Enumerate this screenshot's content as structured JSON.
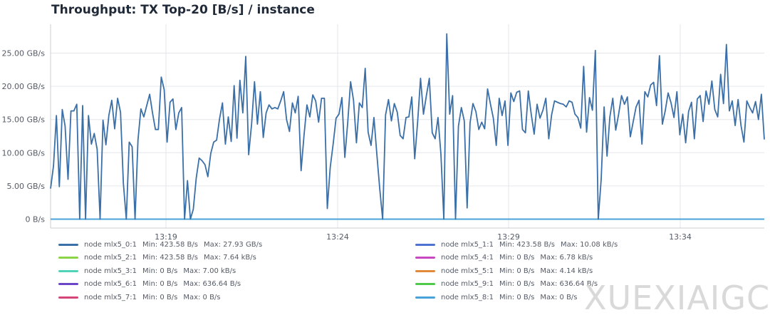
{
  "title": "Throughput: TX Top-20 [B/s] / instance",
  "watermark": "XUEXIAIGC",
  "colors": {
    "line": "#3a6fa8",
    "grid": "#e4e6ea",
    "axis": "#c9ccd2",
    "tick_text": "#555b66"
  },
  "chart_data": {
    "type": "line",
    "title": "Throughput: TX Top-20 [B/s] / instance",
    "xlabel": "",
    "ylabel": "",
    "ylim": [
      0,
      29.5
    ],
    "y_unit": "GB/s",
    "y_ticks": [
      {
        "value": 0,
        "label": "0 B/s"
      },
      {
        "value": 5,
        "label": "5.00 GB/s"
      },
      {
        "value": 10,
        "label": "10.00 GB/s"
      },
      {
        "value": 15,
        "label": "15.00 GB/s"
      },
      {
        "value": 20,
        "label": "20.00 GB/s"
      },
      {
        "value": 25,
        "label": "25.00 GB/s"
      }
    ],
    "x_ticks": [
      "13:19",
      "13:24",
      "13:29",
      "13:34"
    ],
    "grid": true,
    "legend_position": "bottom",
    "series_values": [
      [
        4.6,
        8.0,
        15.6,
        4.9,
        16.5,
        14.0,
        6.0,
        16.3,
        16.3,
        17.3,
        0.0,
        17.1,
        0.0,
        15.6,
        11.3,
        12.9,
        10.5,
        0.0,
        14.9,
        11.2,
        15.6,
        17.9,
        13.6,
        18.2,
        16.1,
        5.4,
        0.0,
        11.6,
        10.9,
        0.0,
        11.9,
        16.6,
        15.4,
        17.1,
        18.8,
        16.0,
        13.5,
        13.5,
        21.4,
        19.5,
        11.6,
        17.6,
        18.1,
        13.5,
        16.0,
        16.8,
        0.0,
        5.8,
        0.0,
        1.5,
        6.2,
        9.2,
        8.8,
        8.2,
        6.4,
        9.9,
        11.6,
        11.9,
        15.1,
        17.5,
        11.3,
        15.4,
        11.7,
        20.1,
        12.2,
        20.9,
        16.0,
        24.5,
        9.7,
        14.3,
        20.7,
        14.3,
        19.2,
        12.3,
        16.0,
        17.2,
        16.6,
        16.8,
        16.6,
        17.8,
        19.2,
        15.0,
        13.2,
        17.5,
        16.0,
        18.5,
        7.3,
        12.6,
        17.2,
        15.4,
        18.7,
        17.8,
        14.6,
        18.2,
        18.2,
        1.6,
        7.8,
        11.3,
        15.2,
        15.8,
        18.3,
        9.3,
        14.6,
        20.7,
        17.9,
        11.5,
        17.5,
        16.8,
        22.7,
        13.1,
        11.1,
        15.3,
        9.7,
        4.6,
        0.0,
        15.7,
        18.0,
        14.8,
        17.4,
        16.1,
        12.6,
        12.1,
        15.3,
        15.4,
        18.4,
        9.1,
        14.6,
        21.2,
        15.8,
        18.6,
        21.2,
        13.0,
        12.1,
        15.3,
        9.8,
        0.0,
        27.9,
        15.8,
        18.6,
        0.0,
        14.0,
        16.8,
        14.8,
        1.7,
        14.5,
        17.4,
        16.2,
        13.5,
        14.6,
        13.6,
        19.6,
        17.3,
        15.2,
        11.1,
        18.2,
        15.6,
        17.8,
        11.1,
        19.0,
        17.7,
        19.1,
        19.3,
        13.5,
        13.0,
        19.3,
        15.8,
        12.8,
        17.3,
        15.2,
        16.4,
        18.2,
        12.1,
        15.7,
        17.8,
        17.6,
        17.4,
        17.3,
        16.9,
        17.8,
        17.6,
        15.8,
        15.3,
        13.7,
        23.0,
        13.1,
        18.3,
        16.4,
        25.4,
        0.0,
        6.0,
        16.9,
        9.5,
        15.4,
        18.2,
        13.4,
        15.8,
        18.6,
        17.3,
        18.4,
        12.4,
        14.7,
        16.9,
        17.9,
        11.3,
        19.2,
        18.4,
        20.2,
        20.6,
        17.1,
        24.6,
        14.3,
        16.3,
        19.0,
        17.5,
        15.3,
        19.2,
        12.7,
        15.8,
        11.5,
        16.2,
        17.6,
        12.1,
        18.1,
        18.6,
        14.7,
        19.3,
        17.3,
        20.8,
        16.5,
        15.4,
        21.8,
        17.4,
        26.3,
        16.3,
        17.8,
        14.1,
        18.0,
        14.1,
        11.6,
        17.8,
        16.8,
        16.0,
        17.7,
        15.0,
        18.8,
        12.0
      ]
    ],
    "series": [
      {
        "name": "node mlx5_0:1",
        "min": "Min: 423.58 B/s",
        "max": "Max: 27.93 GB/s",
        "color": "#3a6fa8"
      },
      {
        "name": "node mlx5_1:1",
        "min": "Min: 423.58 B/s",
        "max": "Max: 10.08 kB/s",
        "color": "#4f73d0"
      },
      {
        "name": "node mlx5_2:1",
        "min": "Min: 423.58 B/s",
        "max": "Max: 7.64 kB/s",
        "color": "#8cd447"
      },
      {
        "name": "node mlx5_4:1",
        "min": "Min: 0 B/s",
        "max": "Max: 6.78 kB/s",
        "color": "#c748c1"
      },
      {
        "name": "node mlx5_3:1",
        "min": "Min: 0 B/s",
        "max": "Max: 7.00 kB/s",
        "color": "#4fd4b8"
      },
      {
        "name": "node mlx5_5:1",
        "min": "Min: 0 B/s",
        "max": "Max: 4.14 kB/s",
        "color": "#e08a3a"
      },
      {
        "name": "node mlx5_6:1",
        "min": "Min: 0 B/s",
        "max": "Max: 636.64 B/s",
        "color": "#6b46c8"
      },
      {
        "name": "node mlx5_9:1",
        "min": "Min: 0 B/s",
        "max": "Max: 636.64 B/s",
        "color": "#4fc94a"
      },
      {
        "name": "node mlx5_7:1",
        "min": "Min: 0 B/s",
        "max": "Max: 0 B/s",
        "color": "#d6457a"
      },
      {
        "name": "node mlx5_8:1",
        "min": "Min: 0 B/s",
        "max": "Max: 0 B/s",
        "color": "#4aa3d8"
      }
    ]
  }
}
